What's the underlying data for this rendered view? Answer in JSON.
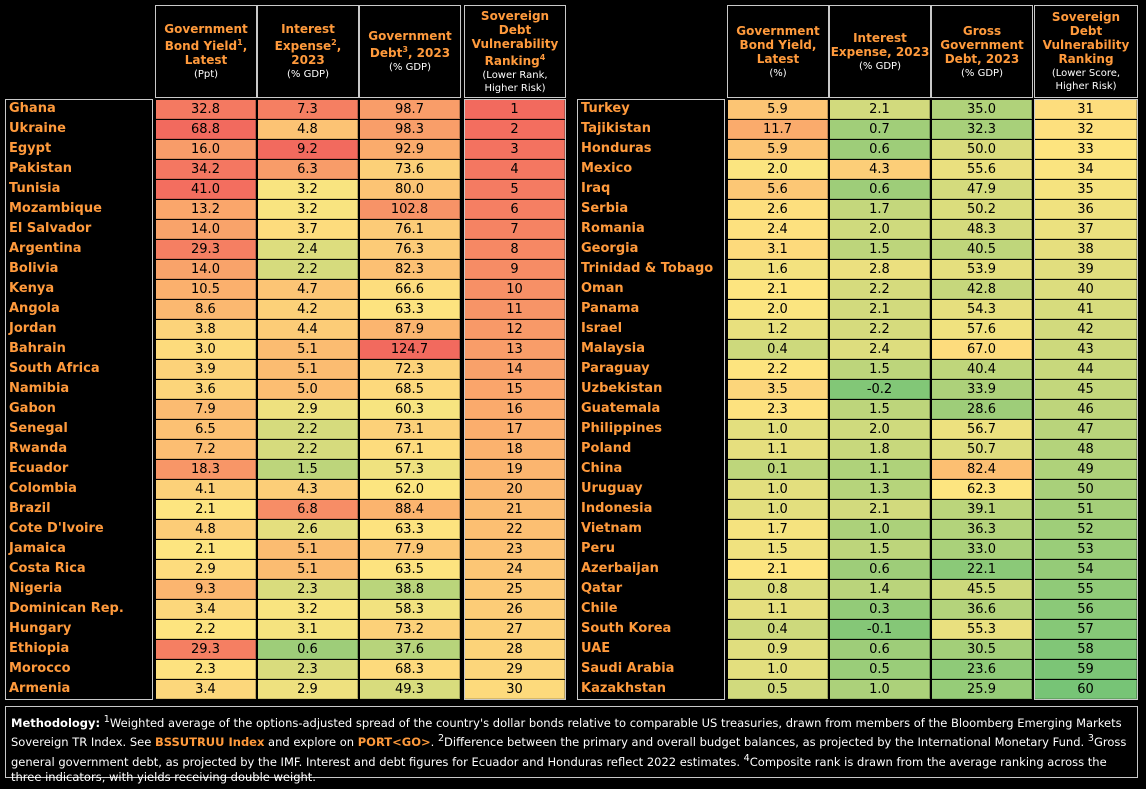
{
  "colors": {
    "red": "#f26a5e",
    "orange": "#fbb06d",
    "yellow": "#fde580",
    "green": "#77c476",
    "accent": "#ff9a3c"
  },
  "left_headers": [
    {
      "title": "Government Bond Yield<sup>1</sup>, Latest",
      "unit": "(Ppt)"
    },
    {
      "title": "Interest Expense<sup>2</sup>, 2023",
      "unit": "(% GDP)"
    },
    {
      "title": "Government Debt<sup>3</sup>, 2023",
      "unit": "(% GDP)"
    },
    {
      "title": "Sovereign Debt Vulnerability Ranking<sup>4</sup>",
      "unit": "(Lower Rank, Higher Risk)"
    }
  ],
  "right_headers": [
    {
      "title": "Government Bond Yield, Latest",
      "unit": "(%)"
    },
    {
      "title": "Interest Expense, 2023",
      "unit": "(% GDP)"
    },
    {
      "title": "Gross Government Debt, 2023",
      "unit": "(% GDP)"
    },
    {
      "title": "Sovereign Debt Vulnerability Ranking",
      "unit": "(Lower Score, Higher Risk)"
    }
  ],
  "left_rows": [
    {
      "country": "Ghana",
      "yield": "32.8",
      "interest": "7.3",
      "debt": "98.7",
      "rank": "1"
    },
    {
      "country": "Ukraine",
      "yield": "68.8",
      "interest": "4.8",
      "debt": "98.3",
      "rank": "2"
    },
    {
      "country": "Egypt",
      "yield": "16.0",
      "interest": "9.2",
      "debt": "92.9",
      "rank": "3"
    },
    {
      "country": "Pakistan",
      "yield": "34.2",
      "interest": "6.3",
      "debt": "73.6",
      "rank": "4"
    },
    {
      "country": "Tunisia",
      "yield": "41.0",
      "interest": "3.2",
      "debt": "80.0",
      "rank": "5"
    },
    {
      "country": "Mozambique",
      "yield": "13.2",
      "interest": "3.2",
      "debt": "102.8",
      "rank": "6"
    },
    {
      "country": "El Salvador",
      "yield": "14.0",
      "interest": "3.7",
      "debt": "76.1",
      "rank": "7"
    },
    {
      "country": "Argentina",
      "yield": "29.3",
      "interest": "2.4",
      "debt": "76.3",
      "rank": "8"
    },
    {
      "country": "Bolivia",
      "yield": "14.0",
      "interest": "2.2",
      "debt": "82.3",
      "rank": "9"
    },
    {
      "country": "Kenya",
      "yield": "10.5",
      "interest": "4.7",
      "debt": "66.6",
      "rank": "10"
    },
    {
      "country": "Angola",
      "yield": "8.6",
      "interest": "4.2",
      "debt": "63.3",
      "rank": "11"
    },
    {
      "country": "Jordan",
      "yield": "3.8",
      "interest": "4.4",
      "debt": "87.9",
      "rank": "12"
    },
    {
      "country": "Bahrain",
      "yield": "3.0",
      "interest": "5.1",
      "debt": "124.7",
      "rank": "13"
    },
    {
      "country": "South Africa",
      "yield": "3.9",
      "interest": "5.1",
      "debt": "72.3",
      "rank": "14"
    },
    {
      "country": "Namibia",
      "yield": "3.6",
      "interest": "5.0",
      "debt": "68.5",
      "rank": "15"
    },
    {
      "country": "Gabon",
      "yield": "7.9",
      "interest": "2.9",
      "debt": "60.3",
      "rank": "16"
    },
    {
      "country": "Senegal",
      "yield": "6.5",
      "interest": "2.2",
      "debt": "73.1",
      "rank": "17"
    },
    {
      "country": "Rwanda",
      "yield": "7.2",
      "interest": "2.2",
      "debt": "67.1",
      "rank": "18"
    },
    {
      "country": "Ecuador",
      "yield": "18.3",
      "interest": "1.5",
      "debt": "57.3",
      "rank": "19"
    },
    {
      "country": "Colombia",
      "yield": "4.1",
      "interest": "4.3",
      "debt": "62.0",
      "rank": "20"
    },
    {
      "country": "Brazil",
      "yield": "2.1",
      "interest": "6.8",
      "debt": "88.4",
      "rank": "21"
    },
    {
      "country": "Cote D'Ivoire",
      "yield": "4.8",
      "interest": "2.6",
      "debt": "63.3",
      "rank": "22"
    },
    {
      "country": "Jamaica",
      "yield": "2.1",
      "interest": "5.1",
      "debt": "77.9",
      "rank": "23"
    },
    {
      "country": "Costa Rica",
      "yield": "2.9",
      "interest": "5.1",
      "debt": "63.5",
      "rank": "24"
    },
    {
      "country": "Nigeria",
      "yield": "9.3",
      "interest": "2.3",
      "debt": "38.8",
      "rank": "25"
    },
    {
      "country": "Dominican Rep.",
      "yield": "3.4",
      "interest": "3.2",
      "debt": "58.3",
      "rank": "26"
    },
    {
      "country": "Hungary",
      "yield": "2.2",
      "interest": "3.1",
      "debt": "73.2",
      "rank": "27"
    },
    {
      "country": "Ethiopia",
      "yield": "29.3",
      "interest": "0.6",
      "debt": "37.6",
      "rank": "28"
    },
    {
      "country": "Morocco",
      "yield": "2.3",
      "interest": "2.3",
      "debt": "68.3",
      "rank": "29"
    },
    {
      "country": "Armenia",
      "yield": "3.4",
      "interest": "2.9",
      "debt": "49.3",
      "rank": "30"
    }
  ],
  "right_rows": [
    {
      "country": "Turkey",
      "yield": "5.9",
      "interest": "2.1",
      "debt": "35.0",
      "rank": "31"
    },
    {
      "country": "Tajikistan",
      "yield": "11.7",
      "interest": "0.7",
      "debt": "32.3",
      "rank": "32"
    },
    {
      "country": "Honduras",
      "yield": "5.9",
      "interest": "0.6",
      "debt": "50.0",
      "rank": "33"
    },
    {
      "country": "Mexico",
      "yield": "2.0",
      "interest": "4.3",
      "debt": "55.6",
      "rank": "34"
    },
    {
      "country": "Iraq",
      "yield": "5.6",
      "interest": "0.6",
      "debt": "47.9",
      "rank": "35"
    },
    {
      "country": "Serbia",
      "yield": "2.6",
      "interest": "1.7",
      "debt": "50.2",
      "rank": "36"
    },
    {
      "country": "Romania",
      "yield": "2.4",
      "interest": "2.0",
      "debt": "48.3",
      "rank": "37"
    },
    {
      "country": "Georgia",
      "yield": "3.1",
      "interest": "1.5",
      "debt": "40.5",
      "rank": "38"
    },
    {
      "country": "Trinidad & Tobago",
      "yield": "1.6",
      "interest": "2.8",
      "debt": "53.9",
      "rank": "39"
    },
    {
      "country": "Oman",
      "yield": "2.1",
      "interest": "2.2",
      "debt": "42.8",
      "rank": "40"
    },
    {
      "country": "Panama",
      "yield": "2.0",
      "interest": "2.1",
      "debt": "54.3",
      "rank": "41"
    },
    {
      "country": "Israel",
      "yield": "1.2",
      "interest": "2.2",
      "debt": "57.6",
      "rank": "42"
    },
    {
      "country": "Malaysia",
      "yield": "0.4",
      "interest": "2.4",
      "debt": "67.0",
      "rank": "43"
    },
    {
      "country": "Paraguay",
      "yield": "2.2",
      "interest": "1.5",
      "debt": "40.4",
      "rank": "44"
    },
    {
      "country": "Uzbekistan",
      "yield": "3.5",
      "interest": "-0.2",
      "debt": "33.9",
      "rank": "45"
    },
    {
      "country": "Guatemala",
      "yield": "2.3",
      "interest": "1.5",
      "debt": "28.6",
      "rank": "46"
    },
    {
      "country": "Philippines",
      "yield": "1.0",
      "interest": "2.0",
      "debt": "56.7",
      "rank": "47"
    },
    {
      "country": "Poland",
      "yield": "1.1",
      "interest": "1.8",
      "debt": "50.7",
      "rank": "48"
    },
    {
      "country": "China",
      "yield": "0.1",
      "interest": "1.1",
      "debt": "82.4",
      "rank": "49"
    },
    {
      "country": "Uruguay",
      "yield": "1.0",
      "interest": "1.3",
      "debt": "62.3",
      "rank": "50"
    },
    {
      "country": "Indonesia",
      "yield": "1.0",
      "interest": "2.1",
      "debt": "39.1",
      "rank": "51"
    },
    {
      "country": "Vietnam",
      "yield": "1.7",
      "interest": "1.0",
      "debt": "36.3",
      "rank": "52"
    },
    {
      "country": "Peru",
      "yield": "1.5",
      "interest": "1.5",
      "debt": "33.0",
      "rank": "53"
    },
    {
      "country": "Azerbaijan",
      "yield": "2.1",
      "interest": "0.6",
      "debt": "22.1",
      "rank": "54"
    },
    {
      "country": "Qatar",
      "yield": "0.8",
      "interest": "1.4",
      "debt": "45.5",
      "rank": "55"
    },
    {
      "country": "Chile",
      "yield": "1.1",
      "interest": "0.3",
      "debt": "36.6",
      "rank": "56"
    },
    {
      "country": "South Korea",
      "yield": "0.4",
      "interest": "-0.1",
      "debt": "55.3",
      "rank": "57"
    },
    {
      "country": "UAE",
      "yield": "0.9",
      "interest": "0.6",
      "debt": "30.5",
      "rank": "58"
    },
    {
      "country": "Saudi Arabia",
      "yield": "1.0",
      "interest": "0.5",
      "debt": "23.6",
      "rank": "59"
    },
    {
      "country": "Kazakhstan",
      "yield": "0.5",
      "interest": "1.0",
      "debt": "25.9",
      "rank": "60"
    }
  ],
  "methodology": {
    "label": "Methodology:",
    "p1": "Weighted average of the options-adjusted spread of the country's dollar bonds relative to comparable US treasuries, drawn from members of the Bloomberg Emerging Markets Sovereign TR Index. See ",
    "code1": "BSSUTRUU Index",
    "p2": " and explore on ",
    "code2": "PORT<GO>",
    "p3": ". ",
    "p4": "Difference between the primary and overall budget balances, as projected by the International Monetary Fund. ",
    "p5": "Gross general government debt, as projected by the IMF. Interest and debt figures for Ecuador and Honduras reflect 2022 estimates. ",
    "p6": "Composite rank is drawn from the average ranking across the three indicators, with yields receiving double weight."
  }
}
